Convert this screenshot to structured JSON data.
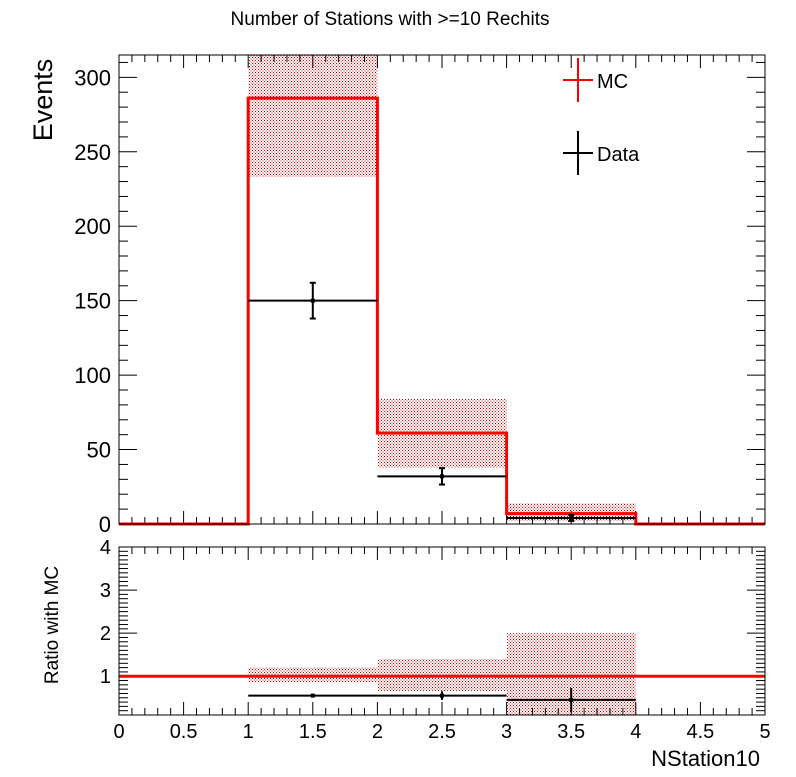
{
  "chart_data": {
    "type": "bar",
    "title": "Number of Stations with >=10 Rechits",
    "xlabel": "NStation10",
    "ylabel": "Events",
    "ratio_ylabel": "Ratio with MC",
    "xlim": [
      0,
      5
    ],
    "ylim": [
      0,
      315
    ],
    "ratio_ylim": [
      0.1,
      4
    ],
    "x_ticks": [
      "0",
      "0.5",
      "1",
      "1.5",
      "2",
      "2.5",
      "3",
      "3.5",
      "4",
      "4.5",
      "5"
    ],
    "y_ticks": [
      "0",
      "50",
      "100",
      "150",
      "200",
      "250",
      "300"
    ],
    "ratio_y_ticks": [
      "1",
      "2",
      "3",
      "4"
    ],
    "bin_edges": [
      0,
      1,
      2,
      3,
      4,
      5
    ],
    "legend_position": "top-right",
    "series": [
      {
        "name": "MC",
        "color": "#ff0000",
        "values": [
          0,
          286,
          61,
          7,
          0
        ],
        "band_low": [
          0,
          233,
          38,
          2,
          0
        ],
        "band_high": [
          0,
          315,
          84,
          14,
          0
        ]
      },
      {
        "name": "Data",
        "color": "#000000",
        "values": [
          0,
          150,
          32,
          4,
          0
        ],
        "errors": [
          0,
          12,
          5.5,
          2,
          0
        ]
      }
    ],
    "ratio": {
      "line_value": 1,
      "band_low": [
        null,
        0.85,
        0.65,
        0.1,
        null
      ],
      "band_high": [
        null,
        1.2,
        1.4,
        2.0,
        null
      ],
      "values": [
        null,
        0.55,
        0.55,
        0.45,
        null
      ],
      "errors": [
        null,
        0.03,
        0.1,
        0.28,
        null
      ]
    }
  }
}
